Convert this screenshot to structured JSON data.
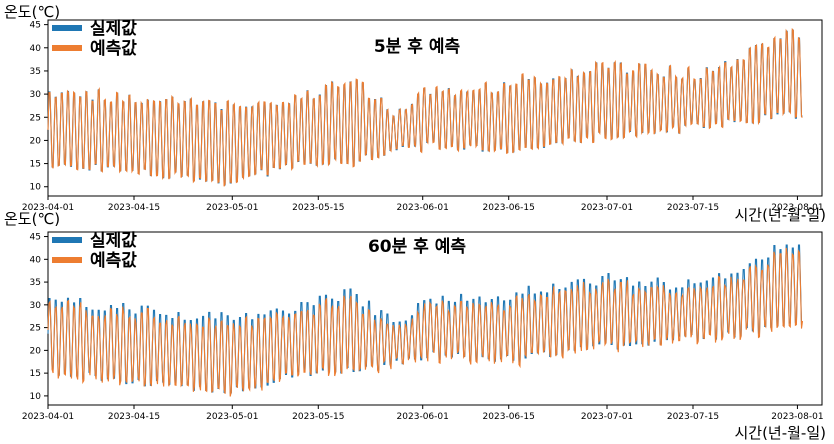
{
  "colors": {
    "actual": "#1f77b4",
    "predicted": "#ed7d31"
  },
  "chart_data": [
    {
      "type": "line",
      "title": "5분 후 예측",
      "ylabel": "온도(℃)",
      "xlabel": "시간(년-월-일)",
      "x_range": [
        "2023-04-01",
        "2023-08-01"
      ],
      "ylim": [
        8,
        46
      ],
      "y_ticks": [
        10,
        15,
        20,
        25,
        30,
        35,
        40,
        45
      ],
      "x_ticks": [
        "2023-04-01",
        "2023-04-15",
        "2023-05-01",
        "2023-05-15",
        "2023-06-01",
        "2023-06-15",
        "2023-07-01",
        "2023-07-15",
        "2023-08-01"
      ],
      "legend": {
        "placement": "top-left",
        "entries": [
          "실제값",
          "예측값"
        ]
      },
      "grid": false,
      "series": [
        {
          "name": "실제값",
          "color": "#1f77b4",
          "daily_max": [
            [
              "2023-04-01",
              32
            ],
            [
              "2023-04-08",
              31
            ],
            [
              "2023-04-15",
              30
            ],
            [
              "2023-04-22",
              29
            ],
            [
              "2023-04-29",
              29
            ],
            [
              "2023-05-06",
              29
            ],
            [
              "2023-05-13",
              31
            ],
            [
              "2023-05-20",
              34
            ],
            [
              "2023-05-27",
              27
            ],
            [
              "2023-06-03",
              32
            ],
            [
              "2023-06-10",
              32
            ],
            [
              "2023-06-17",
              34
            ],
            [
              "2023-06-24",
              35
            ],
            [
              "2023-07-01",
              37
            ],
            [
              "2023-07-08",
              36
            ],
            [
              "2023-07-15",
              35
            ],
            [
              "2023-07-22",
              38
            ],
            [
              "2023-07-29",
              44
            ]
          ],
          "daily_min": [
            [
              "2023-04-01",
              14
            ],
            [
              "2023-04-08",
              13
            ],
            [
              "2023-04-15",
              12
            ],
            [
              "2023-04-22",
              11
            ],
            [
              "2023-04-29",
              10
            ],
            [
              "2023-05-06",
              12
            ],
            [
              "2023-05-13",
              14
            ],
            [
              "2023-05-20",
              14
            ],
            [
              "2023-05-27",
              17
            ],
            [
              "2023-06-03",
              18
            ],
            [
              "2023-06-10",
              17
            ],
            [
              "2023-06-17",
              17
            ],
            [
              "2023-06-24",
              19
            ],
            [
              "2023-07-01",
              20
            ],
            [
              "2023-07-08",
              21
            ],
            [
              "2023-07-15",
              22
            ],
            [
              "2023-07-22",
              23
            ],
            [
              "2023-07-29",
              24
            ]
          ]
        },
        {
          "name": "예측값",
          "color": "#ed7d31",
          "note_relation": "follows 실제값 closely"
        }
      ]
    },
    {
      "type": "line",
      "title": "60분 후 예측",
      "ylabel": "온도(℃)",
      "xlabel": "시간(년-월-일)",
      "x_range": [
        "2023-04-01",
        "2023-08-01"
      ],
      "ylim": [
        8,
        46
      ],
      "y_ticks": [
        10,
        15,
        20,
        25,
        30,
        35,
        40,
        45
      ],
      "x_ticks": [
        "2023-04-01",
        "2023-04-15",
        "2023-05-01",
        "2023-05-15",
        "2023-06-01",
        "2023-06-15",
        "2023-07-01",
        "2023-07-15",
        "2023-08-01"
      ],
      "legend": {
        "placement": "top-left",
        "entries": [
          "실제값",
          "예측값"
        ]
      },
      "grid": false,
      "series": [
        {
          "name": "실제값",
          "color": "#1f77b4"
        },
        {
          "name": "예측값",
          "color": "#ed7d31"
        }
      ]
    }
  ]
}
